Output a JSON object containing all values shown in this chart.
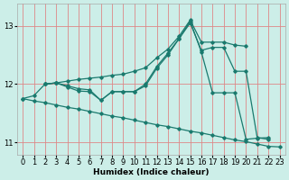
{
  "bg_color": "#cceee8",
  "grid_color": "#dd8888",
  "line_color": "#1a7a6e",
  "xlabel": "Humidex (Indice chaleur)",
  "xlim": [
    -0.5,
    23.5
  ],
  "ylim": [
    10.78,
    13.38
  ],
  "yticks": [
    11,
    12,
    13
  ],
  "xticks": [
    0,
    1,
    2,
    3,
    4,
    5,
    6,
    7,
    8,
    9,
    10,
    11,
    12,
    13,
    14,
    15,
    16,
    17,
    18,
    19,
    20,
    21,
    22,
    23
  ],
  "series": [
    {
      "x": [
        0,
        1,
        2,
        3,
        4,
        5,
        6,
        7,
        8,
        9,
        10,
        11,
        12,
        13,
        14,
        15,
        16,
        17,
        18,
        19,
        20,
        21,
        22,
        23
      ],
      "y": [
        11.75,
        11.71,
        11.68,
        11.64,
        11.6,
        11.57,
        11.53,
        11.49,
        11.45,
        11.42,
        11.38,
        11.34,
        11.3,
        11.27,
        11.23,
        11.19,
        11.16,
        11.12,
        11.08,
        11.04,
        11.01,
        10.97,
        10.93,
        10.92
      ]
    },
    {
      "x": [
        0,
        1,
        2,
        3,
        4,
        5,
        6,
        7,
        8,
        9,
        10,
        11,
        12,
        13,
        14,
        15,
        16,
        17,
        18,
        19,
        20,
        21,
        22
      ],
      "y": [
        11.75,
        11.8,
        12.0,
        12.02,
        11.95,
        11.88,
        11.87,
        11.72,
        11.87,
        11.87,
        11.87,
        11.97,
        12.27,
        12.5,
        12.78,
        13.08,
        12.55,
        11.85,
        11.85,
        11.85,
        11.05,
        11.07,
        11.08
      ]
    },
    {
      "x": [
        2,
        3,
        4,
        5,
        6,
        7,
        8,
        9,
        10,
        11,
        12,
        13,
        14,
        15,
        16,
        17,
        18,
        19,
        20
      ],
      "y": [
        12.0,
        12.02,
        12.05,
        12.08,
        12.1,
        12.12,
        12.15,
        12.17,
        12.22,
        12.28,
        12.45,
        12.6,
        12.82,
        13.1,
        12.72,
        12.72,
        12.72,
        12.67,
        12.65
      ]
    },
    {
      "x": [
        2,
        3,
        4,
        5,
        6,
        7,
        8,
        9,
        10,
        11,
        12,
        13,
        14,
        15,
        16,
        17,
        18,
        19,
        20,
        21,
        22
      ],
      "y": [
        12.0,
        12.02,
        11.97,
        11.92,
        11.9,
        11.72,
        11.87,
        11.87,
        11.87,
        12.0,
        12.3,
        12.53,
        12.78,
        13.05,
        12.58,
        12.63,
        12.63,
        12.22,
        12.22,
        11.08,
        11.05
      ]
    }
  ]
}
